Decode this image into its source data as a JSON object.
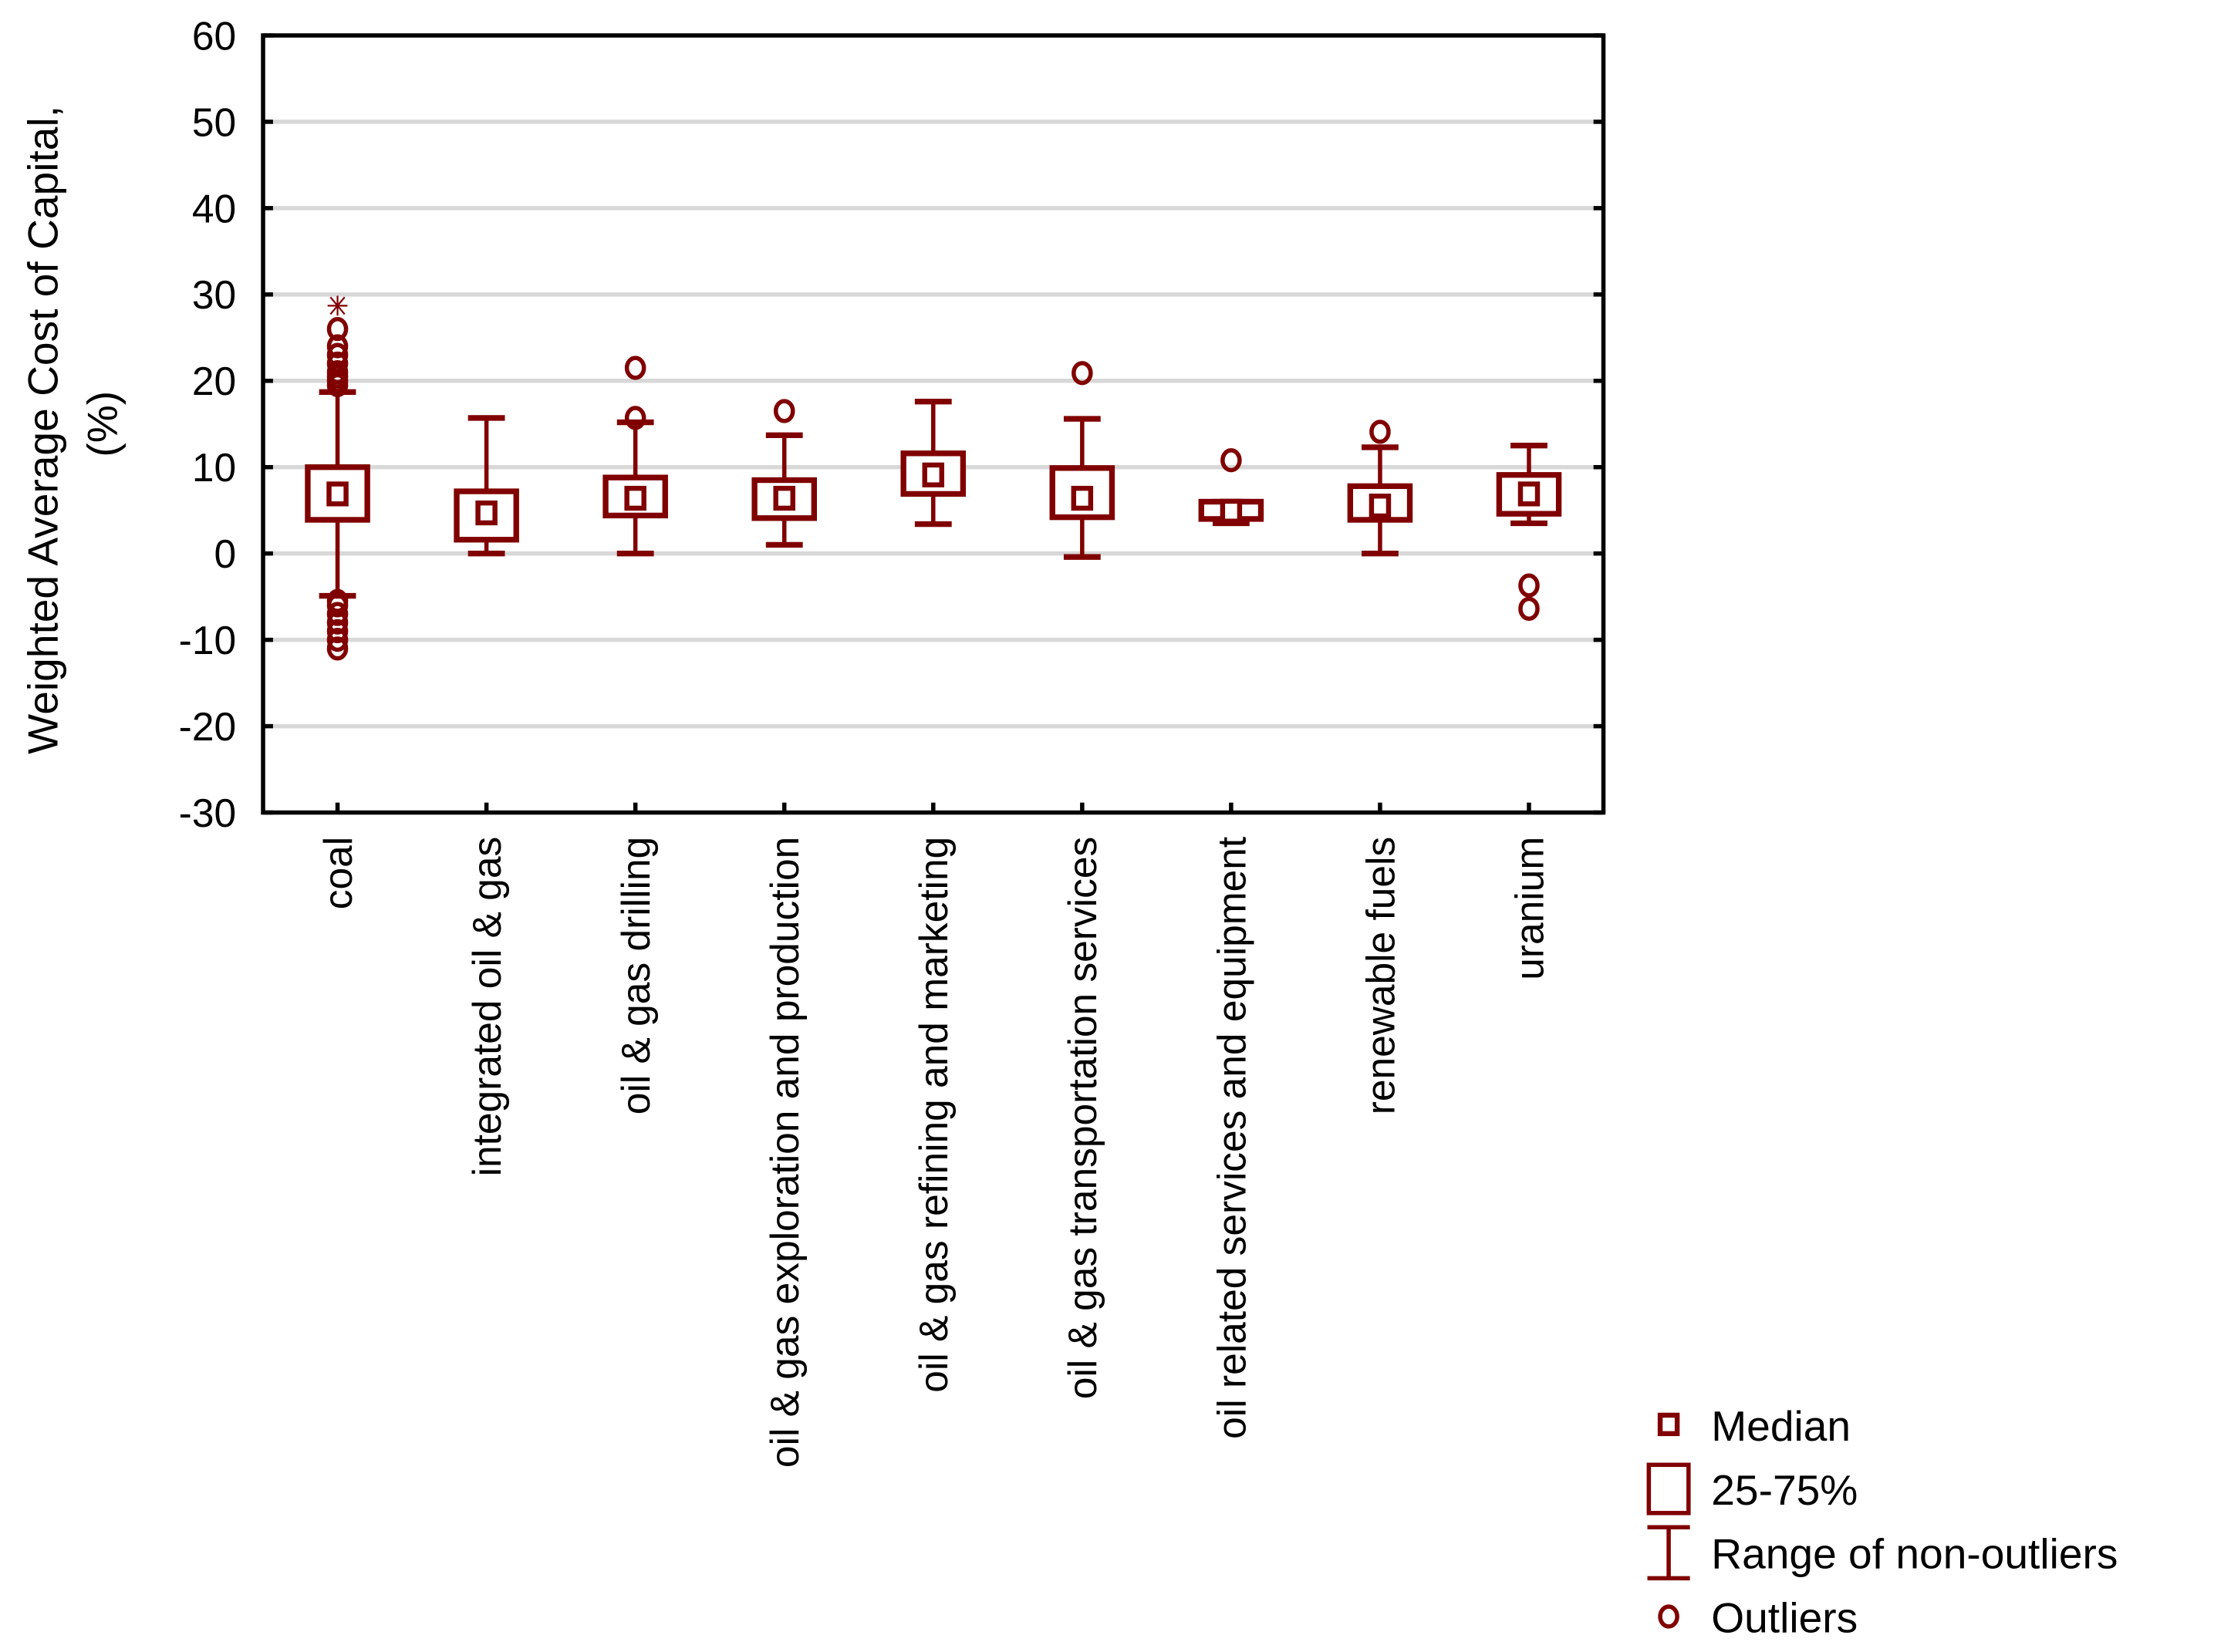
{
  "chart_data": {
    "type": "boxplot",
    "title": "",
    "ylabel": "Weighted Average Cost of Capital, (%)",
    "ylabel_lines": [
      "Weighted Average Cost of Capital,",
      "(%)"
    ],
    "xlabel": "",
    "ylim": [
      -30,
      60
    ],
    "yticks": [
      -30,
      -20,
      -10,
      0,
      10,
      20,
      30,
      40,
      50,
      60
    ],
    "grid": true,
    "legend_placement": "bottom-right",
    "color": "#800000",
    "legend": [
      {
        "symbol": "median",
        "label": "Median"
      },
      {
        "symbol": "box",
        "label": "25-75%"
      },
      {
        "symbol": "whisker",
        "label": "Range of non-outliers"
      },
      {
        "symbol": "outlier",
        "label": "Outliers"
      }
    ],
    "categories": [
      "coal",
      "integrated oil & gas",
      "oil & gas drilling",
      "oil & gas exploration and production",
      "oil & gas refining and marketing",
      "oil & gas transportation services",
      "oil related services and equipment",
      "renewable fuels",
      "uranium"
    ],
    "boxes": [
      {
        "median": 6.9,
        "q1": 3.9,
        "q3": 10.0,
        "min": -4.9,
        "max": 18.7,
        "outliers": [
          19.5,
          20,
          20.5,
          21,
          22,
          23,
          24,
          26,
          -5.5,
          -6,
          -7,
          -8,
          -9,
          -10,
          -11
        ],
        "extremes": [
          28.7
        ]
      },
      {
        "median": 4.7,
        "q1": 1.6,
        "q3": 7.2,
        "min": 0.0,
        "max": 15.7,
        "outliers": [],
        "extremes": []
      },
      {
        "median": 6.4,
        "q1": 4.4,
        "q3": 8.8,
        "min": 0.0,
        "max": 15.2,
        "outliers": [
          21.5,
          15.7
        ],
        "extremes": []
      },
      {
        "median": 6.4,
        "q1": 4.1,
        "q3": 8.5,
        "min": 1.0,
        "max": 13.7,
        "outliers": [
          16.5
        ],
        "extremes": []
      },
      {
        "median": 9.1,
        "q1": 6.9,
        "q3": 11.6,
        "min": 3.4,
        "max": 17.6,
        "outliers": [],
        "extremes": []
      },
      {
        "median": 6.4,
        "q1": 4.2,
        "q3": 9.9,
        "min": -0.4,
        "max": 15.6,
        "outliers": [
          20.9
        ],
        "extremes": []
      },
      {
        "median": 4.9,
        "q1": 4.0,
        "q3": 6.0,
        "min": 3.5,
        "max": 6.0,
        "outliers": [
          10.8
        ],
        "extremes": []
      },
      {
        "median": 5.5,
        "q1": 3.9,
        "q3": 7.8,
        "min": 0.0,
        "max": 12.3,
        "outliers": [
          14.1
        ],
        "extremes": []
      },
      {
        "median": 6.9,
        "q1": 4.6,
        "q3": 9.1,
        "min": 3.5,
        "max": 12.5,
        "outliers": [
          -3.7,
          -6.4
        ],
        "extremes": []
      }
    ]
  }
}
